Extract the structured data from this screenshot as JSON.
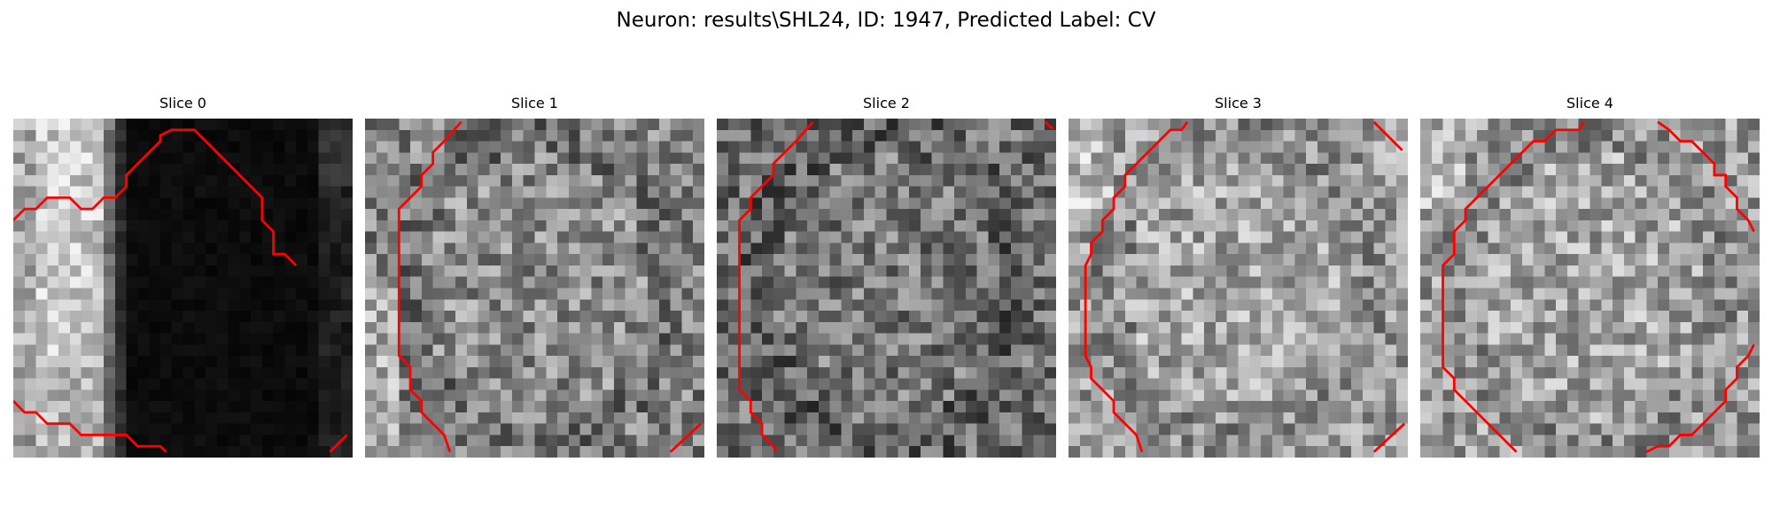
{
  "figure": {
    "title": "Neuron: results\\SHL24, ID: 1947, Predicted Label: CV"
  },
  "contour_color": "#ff0000",
  "slices": [
    {
      "title": "Slice 0",
      "style": "edge"
    },
    {
      "title": "Slice 1",
      "style": "ring"
    },
    {
      "title": "Slice 2",
      "style": "ring-dark"
    },
    {
      "title": "Slice 3",
      "style": "ring-bright"
    },
    {
      "title": "Slice 4",
      "style": "ring-bright"
    }
  ]
}
